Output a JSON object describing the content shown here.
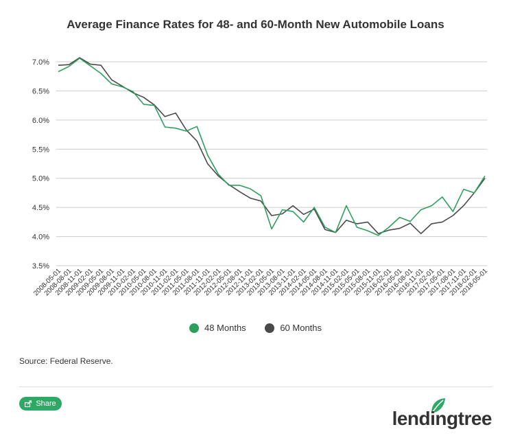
{
  "colors": {
    "series_48": "#2e9e5c",
    "series_60": "#4a4a4a",
    "grid": "#cccccc",
    "brand": "#2fa866"
  },
  "source": "Source: Federal Reserve.",
  "share": {
    "label": "Share",
    "icon": "share-icon"
  },
  "logo": {
    "text": "lendingtree",
    "icon": "leaf-icon"
  },
  "chart_data": {
    "type": "line",
    "title": "Average Finance Rates for 48- and 60-Month New Automobile Loans",
    "xlabel": "",
    "ylabel": "",
    "ylim": [
      3.5,
      7.0
    ],
    "yticks": [
      "3.5%",
      "4.0%",
      "4.5%",
      "5.0%",
      "5.5%",
      "6.0%",
      "6.5%",
      "7.0%"
    ],
    "ytick_values": [
      3.5,
      4.0,
      4.5,
      5.0,
      5.5,
      6.0,
      6.5,
      7.0
    ],
    "grid": "horizontal",
    "legend": "bottom-center",
    "x": [
      "2008-05-01",
      "2008-08-01",
      "2008-11-01",
      "2009-02-01",
      "2009-05-01",
      "2009-08-01",
      "2009-11-01",
      "2010-02-01",
      "2010-05-01",
      "2010-08-01",
      "2010-11-01",
      "2011-02-01",
      "2011-05-01",
      "2011-08-01",
      "2011-11-01",
      "2012-02-01",
      "2012-05-01",
      "2012-08-01",
      "2012-11-01",
      "2013-02-01",
      "2013-05-01",
      "2013-08-01",
      "2013-11-01",
      "2014-02-01",
      "2014-05-01",
      "2014-08-01",
      "2014-11-01",
      "2015-02-01",
      "2015-05-01",
      "2015-08-01",
      "2015-11-01",
      "2016-02-01",
      "2016-05-01",
      "2016-08-01",
      "2016-11-01",
      "2017-02-01",
      "2017-05-01",
      "2017-08-01",
      "2017-11-01",
      "2018-02-01",
      "2018-05-01"
    ],
    "series": [
      {
        "name": "48 Months",
        "values": [
          6.83,
          6.92,
          7.06,
          6.93,
          6.8,
          6.62,
          6.57,
          6.49,
          6.27,
          6.25,
          5.88,
          5.86,
          5.81,
          5.89,
          5.4,
          5.07,
          4.88,
          4.88,
          4.82,
          4.7,
          4.13,
          4.46,
          4.43,
          4.25,
          4.5,
          4.16,
          4.07,
          4.53,
          4.16,
          4.1,
          4.02,
          4.16,
          4.33,
          4.26,
          4.46,
          4.53,
          4.68,
          4.43,
          4.81,
          4.75,
          5.04
        ]
      },
      {
        "name": "60 Months",
        "values": [
          6.94,
          6.95,
          7.07,
          6.96,
          6.94,
          6.69,
          6.58,
          6.47,
          6.39,
          6.26,
          6.06,
          6.12,
          5.83,
          5.64,
          5.25,
          5.04,
          4.89,
          4.77,
          4.66,
          4.61,
          4.36,
          4.39,
          4.53,
          4.38,
          4.47,
          4.12,
          4.07,
          4.28,
          4.22,
          4.25,
          4.05,
          4.11,
          4.14,
          4.23,
          4.05,
          4.22,
          4.25,
          4.36,
          4.53,
          4.75,
          5.0
        ]
      }
    ]
  }
}
